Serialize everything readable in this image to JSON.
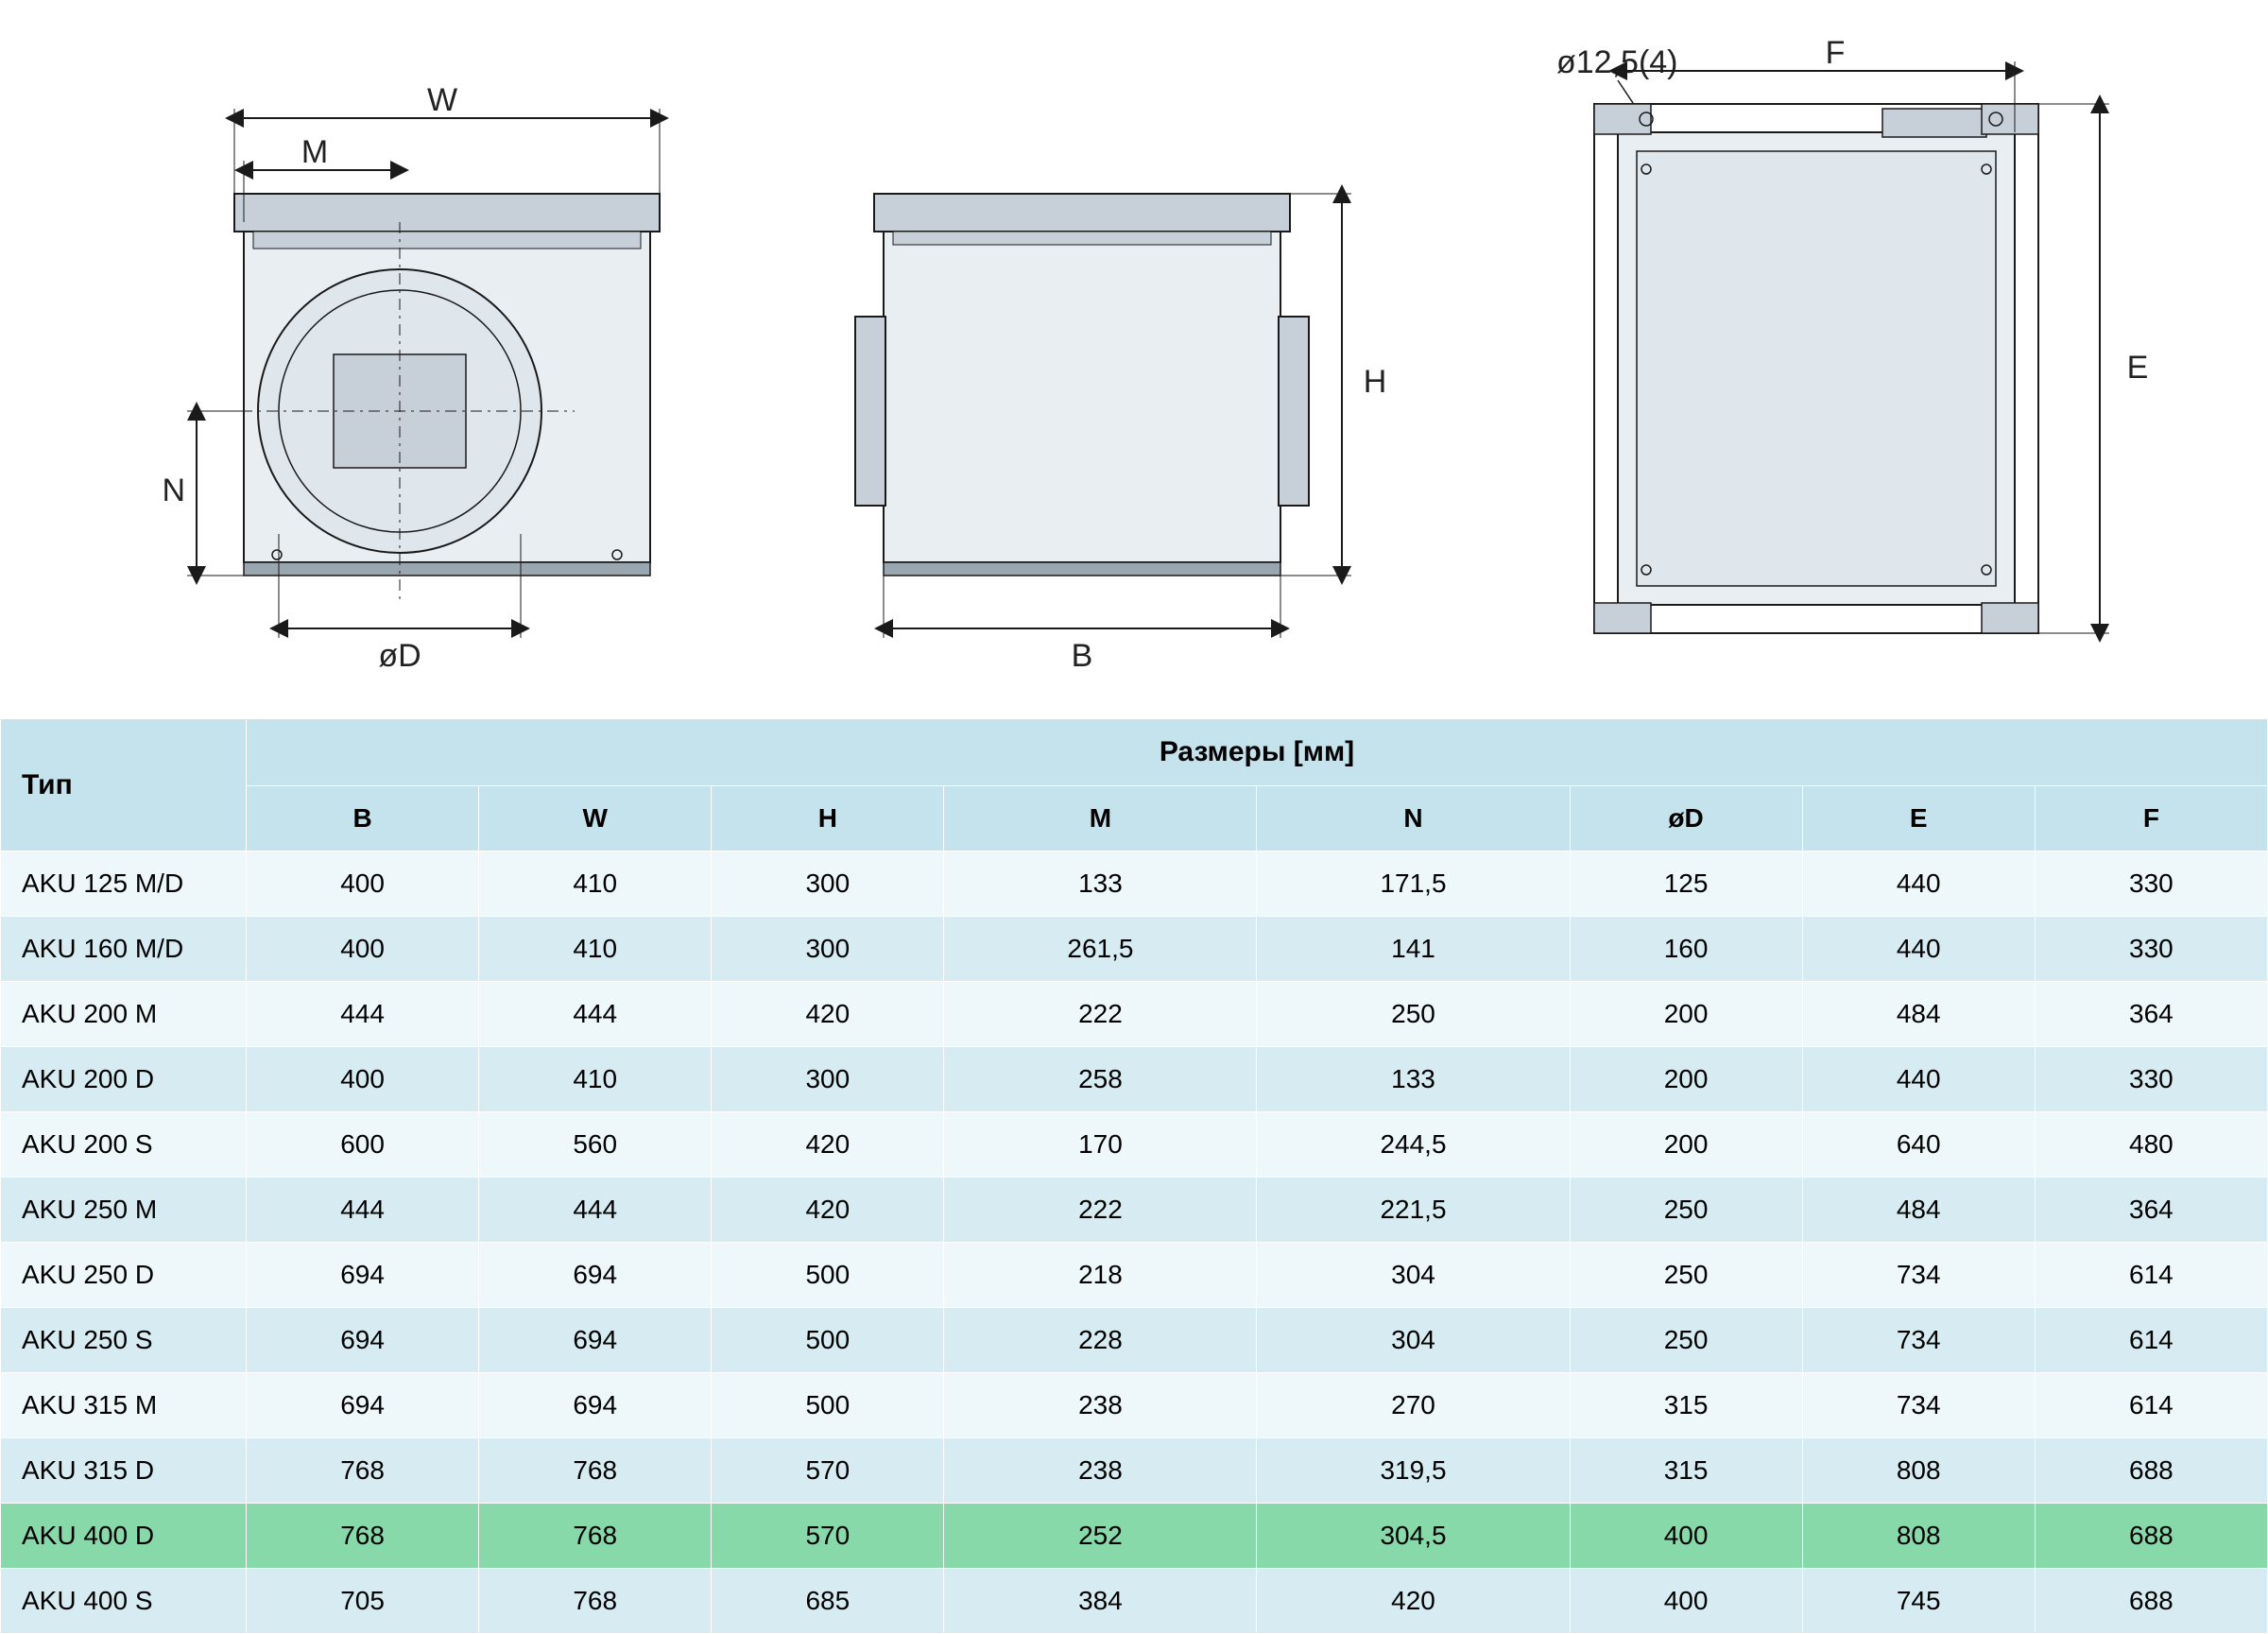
{
  "diagram": {
    "annotation": "ø12,5(4)",
    "labels": {
      "W": "W",
      "M": "M",
      "N": "N",
      "oD": "øD",
      "B": "B",
      "H": "H",
      "E": "E",
      "F": "F"
    },
    "stroke": "#1a1a1a",
    "fill_light": "#e9eef2",
    "fill_mid": "#c7d0d8",
    "fill_dark": "#9aa6b0"
  },
  "table": {
    "type_header": "Тип",
    "dims_header": "Размеры [мм]",
    "columns": [
      "B",
      "W",
      "H",
      "M",
      "N",
      "øD",
      "E",
      "F"
    ],
    "highlight_index": 10,
    "colors": {
      "header_bg": "#c5e3ec",
      "row_odd_bg": "#eef7fa",
      "row_even_bg": "#d7ecf2",
      "highlight_bg": "#87d9a9",
      "border": "#ffffff",
      "text": "#222222"
    },
    "font": {
      "family": "Arial",
      "size_pt": 21,
      "header_size_pt": 22,
      "header_weight": "bold"
    },
    "rows": [
      {
        "type": "AKU 125 M/D",
        "B": "400",
        "W": "410",
        "H": "300",
        "M": "133",
        "N": "171,5",
        "oD": "125",
        "E": "440",
        "F": "330"
      },
      {
        "type": "AKU 160 M/D",
        "B": "400",
        "W": "410",
        "H": "300",
        "M": "261,5",
        "N": "141",
        "oD": "160",
        "E": "440",
        "F": "330"
      },
      {
        "type": "AKU 200 M",
        "B": "444",
        "W": "444",
        "H": "420",
        "M": "222",
        "N": "250",
        "oD": "200",
        "E": "484",
        "F": "364"
      },
      {
        "type": "AKU 200 D",
        "B": "400",
        "W": "410",
        "H": "300",
        "M": "258",
        "N": "133",
        "oD": "200",
        "E": "440",
        "F": "330"
      },
      {
        "type": "AKU 200 S",
        "B": "600",
        "W": "560",
        "H": "420",
        "M": "170",
        "N": "244,5",
        "oD": "200",
        "E": "640",
        "F": "480"
      },
      {
        "type": "AKU 250 M",
        "B": "444",
        "W": "444",
        "H": "420",
        "M": "222",
        "N": "221,5",
        "oD": "250",
        "E": "484",
        "F": "364"
      },
      {
        "type": "AKU 250 D",
        "B": "694",
        "W": "694",
        "H": "500",
        "M": "218",
        "N": "304",
        "oD": "250",
        "E": "734",
        "F": "614"
      },
      {
        "type": "AKU 250 S",
        "B": "694",
        "W": "694",
        "H": "500",
        "M": "228",
        "N": "304",
        "oD": "250",
        "E": "734",
        "F": "614"
      },
      {
        "type": "AKU 315 M",
        "B": "694",
        "W": "694",
        "H": "500",
        "M": "238",
        "N": "270",
        "oD": "315",
        "E": "734",
        "F": "614"
      },
      {
        "type": "AKU 315 D",
        "B": "768",
        "W": "768",
        "H": "570",
        "M": "238",
        "N": "319,5",
        "oD": "315",
        "E": "808",
        "F": "688"
      },
      {
        "type": "AKU 400 D",
        "B": "768",
        "W": "768",
        "H": "570",
        "M": "252",
        "N": "304,5",
        "oD": "400",
        "E": "808",
        "F": "688"
      },
      {
        "type": "AKU 400 S",
        "B": "705",
        "W": "768",
        "H": "685",
        "M": "384",
        "N": "420",
        "oD": "400",
        "E": "745",
        "F": "688"
      }
    ]
  }
}
